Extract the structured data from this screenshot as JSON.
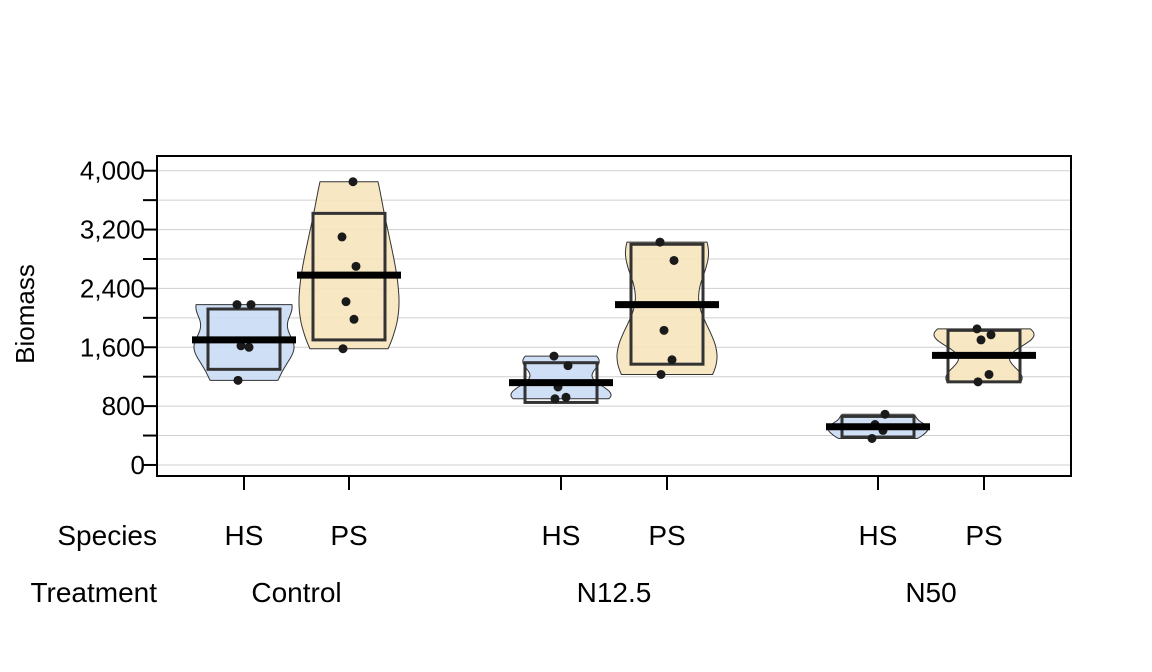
{
  "chart_data": {
    "type": "pirate",
    "title": "",
    "xlabel": "",
    "ylabel": "Biomass",
    "ylim": [
      -150,
      4200
    ],
    "yticks": [
      0,
      800,
      1600,
      2400,
      3200,
      4000
    ],
    "ytick_labels": [
      "0",
      "800",
      "1,600",
      "2,400",
      "3,200",
      "4,000"
    ],
    "grid": true,
    "row_labels": {
      "species": "Species",
      "treatment": "Treatment"
    },
    "groups": [
      {
        "treatment": "Control",
        "species": [
          "HS",
          "PS"
        ],
        "series": [
          {
            "species": "HS",
            "mean": 1700,
            "ci": [
              1300,
              2120
            ],
            "points": [
              1150,
              1600,
              1620,
              2180,
              2180
            ],
            "color": "#c9dcf5"
          },
          {
            "species": "PS",
            "mean": 2580,
            "ci": [
              1700,
              3420
            ],
            "points": [
              1580,
              1980,
              2220,
              2700,
              3100,
              3850
            ],
            "color": "#f7e4bd"
          }
        ]
      },
      {
        "treatment": "N12.5",
        "species": [
          "HS",
          "PS"
        ],
        "series": [
          {
            "species": "HS",
            "mean": 1120,
            "ci": [
              850,
              1390
            ],
            "points": [
              900,
              920,
              1060,
              1350,
              1480
            ],
            "color": "#c9dcf5"
          },
          {
            "species": "PS",
            "mean": 2180,
            "ci": [
              1370,
              3000
            ],
            "points": [
              1230,
              1430,
              1830,
              2780,
              3030
            ],
            "color": "#f7e4bd"
          }
        ]
      },
      {
        "treatment": "N50",
        "species": [
          "HS",
          "PS"
        ],
        "series": [
          {
            "species": "HS",
            "mean": 520,
            "ci": [
              380,
              660
            ],
            "points": [
              360,
              470,
              550,
              690
            ],
            "color": "#c9dcf5"
          },
          {
            "species": "PS",
            "mean": 1490,
            "ci": [
              1130,
              1830
            ],
            "points": [
              1130,
              1230,
              1700,
              1770,
              1850
            ],
            "color": "#f7e4bd"
          }
        ]
      }
    ]
  }
}
